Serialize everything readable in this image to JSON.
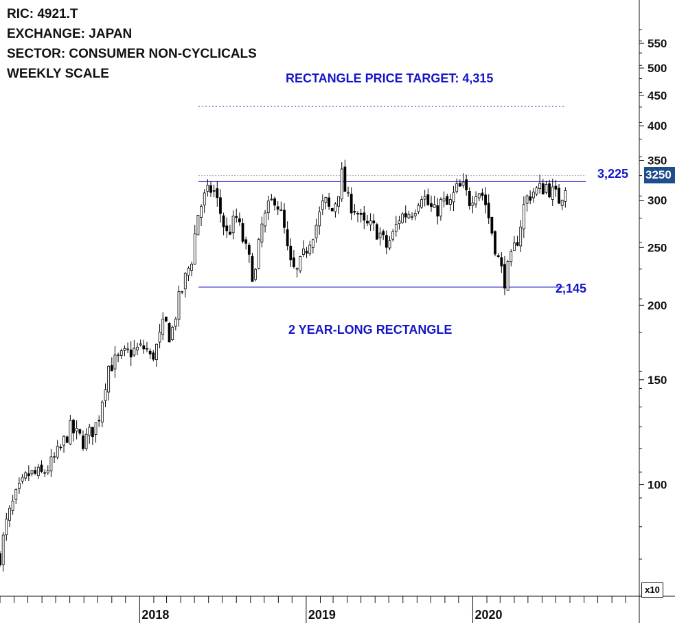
{
  "header": {
    "ric": "RIC: 4921.T",
    "exchange": "EXCHANGE: JAPAN",
    "sector": "SECTOR: CONSUMER NON-CYCLICALS",
    "scale": "WEEKLY SCALE"
  },
  "annotations": {
    "target": "RECTANGLE PRICE TARGET: 4,315",
    "resistance": "3,225",
    "support": "2,145",
    "pattern": "2 YEAR-LONG RECTANGLE"
  },
  "last_price_label": "3250",
  "scale_badge": "x10",
  "colors": {
    "annotation": "#1515c8",
    "last_price_box": "#1f4e8c",
    "candles": "#000000"
  },
  "chart_data": {
    "type": "candlestick",
    "scale": "log",
    "ylim": [
      70,
      620
    ],
    "y_ticks": [
      100,
      150,
      200,
      250,
      300,
      350,
      400,
      450,
      500,
      550
    ],
    "x_labels": [
      "2018",
      "2019",
      "2020"
    ],
    "x_range": [
      "2017-03-01",
      "2020-12-31"
    ],
    "lines": [
      {
        "type": "horizontal",
        "value": 322.5,
        "x": [
          "2018-05-10",
          "2020-09-05"
        ],
        "label": "3,225"
      },
      {
        "type": "horizontal",
        "value": 214.5,
        "x": [
          "2018-05-10",
          "2020-07-20"
        ],
        "label": "2,145"
      },
      {
        "type": "horizontal",
        "value": 431.5,
        "x": [
          "2018-05-10",
          "2020-07-20"
        ],
        "style": "dotted",
        "label": "RECTANGLE PRICE TARGET: 4,315"
      },
      {
        "type": "horizontal",
        "value": 330,
        "x": [
          "2018-05-10",
          "2020-09-05"
        ],
        "style": "dotted-gray"
      }
    ],
    "last_price": 325,
    "anchors": [
      [
        "2017-03-01",
        76
      ],
      [
        "2017-03-15",
        86
      ],
      [
        "2017-04-01",
        94
      ],
      [
        "2017-05-01",
        104
      ],
      [
        "2017-06-01",
        104
      ],
      [
        "2017-06-20",
        108
      ],
      [
        "2017-07-10",
        114
      ],
      [
        "2017-08-01",
        124
      ],
      [
        "2017-09-01",
        118
      ],
      [
        "2017-10-01",
        127
      ],
      [
        "2017-10-25",
        158
      ],
      [
        "2017-11-20",
        163
      ],
      [
        "2017-12-10",
        167
      ],
      [
        "2018-01-15",
        170
      ],
      [
        "2018-01-25",
        162
      ],
      [
        "2018-02-10",
        172
      ],
      [
        "2018-02-25",
        188
      ],
      [
        "2018-03-10",
        176
      ],
      [
        "2018-03-25",
        200
      ],
      [
        "2018-04-10",
        220
      ],
      [
        "2018-04-25",
        240
      ],
      [
        "2018-05-10",
        288
      ],
      [
        "2018-05-25",
        305
      ],
      [
        "2018-06-10",
        315
      ],
      [
        "2018-06-25",
        290
      ],
      [
        "2018-07-10",
        262
      ],
      [
        "2018-08-01",
        280
      ],
      [
        "2018-08-20",
        250
      ],
      [
        "2018-09-10",
        220
      ],
      [
        "2018-09-25",
        270
      ],
      [
        "2018-10-10",
        290
      ],
      [
        "2018-10-25",
        305
      ],
      [
        "2018-11-10",
        278
      ],
      [
        "2018-11-25",
        235
      ],
      [
        "2018-12-10",
        225
      ],
      [
        "2018-12-25",
        240
      ],
      [
        "2019-01-10",
        260
      ],
      [
        "2019-01-25",
        275
      ],
      [
        "2019-02-10",
        300
      ],
      [
        "2019-02-25",
        285
      ],
      [
        "2019-03-10",
        305
      ],
      [
        "2019-03-20",
        330
      ],
      [
        "2019-04-01",
        300
      ],
      [
        "2019-04-20",
        290
      ],
      [
        "2019-05-05",
        272
      ],
      [
        "2019-05-25",
        270
      ],
      [
        "2019-06-10",
        265
      ],
      [
        "2019-06-25",
        250
      ],
      [
        "2019-07-10",
        262
      ],
      [
        "2019-07-25",
        282
      ],
      [
        "2019-08-10",
        285
      ],
      [
        "2019-08-25",
        290
      ],
      [
        "2019-09-10",
        310
      ],
      [
        "2019-09-25",
        295
      ],
      [
        "2019-10-10",
        285
      ],
      [
        "2019-10-25",
        298
      ],
      [
        "2019-11-10",
        292
      ],
      [
        "2019-11-25",
        312
      ],
      [
        "2019-12-10",
        315
      ],
      [
        "2019-12-25",
        300
      ],
      [
        "2020-01-10",
        315
      ],
      [
        "2020-01-25",
        305
      ],
      [
        "2020-02-10",
        270
      ],
      [
        "2020-02-25",
        240
      ],
      [
        "2020-03-10",
        220
      ],
      [
        "2020-03-25",
        238
      ],
      [
        "2020-04-10",
        262
      ],
      [
        "2020-04-25",
        300
      ],
      [
        "2020-05-10",
        310
      ],
      [
        "2020-05-25",
        312
      ],
      [
        "2020-06-10",
        318
      ],
      [
        "2020-06-25",
        308
      ],
      [
        "2020-07-10",
        300
      ],
      [
        "2020-07-25",
        325
      ]
    ]
  }
}
